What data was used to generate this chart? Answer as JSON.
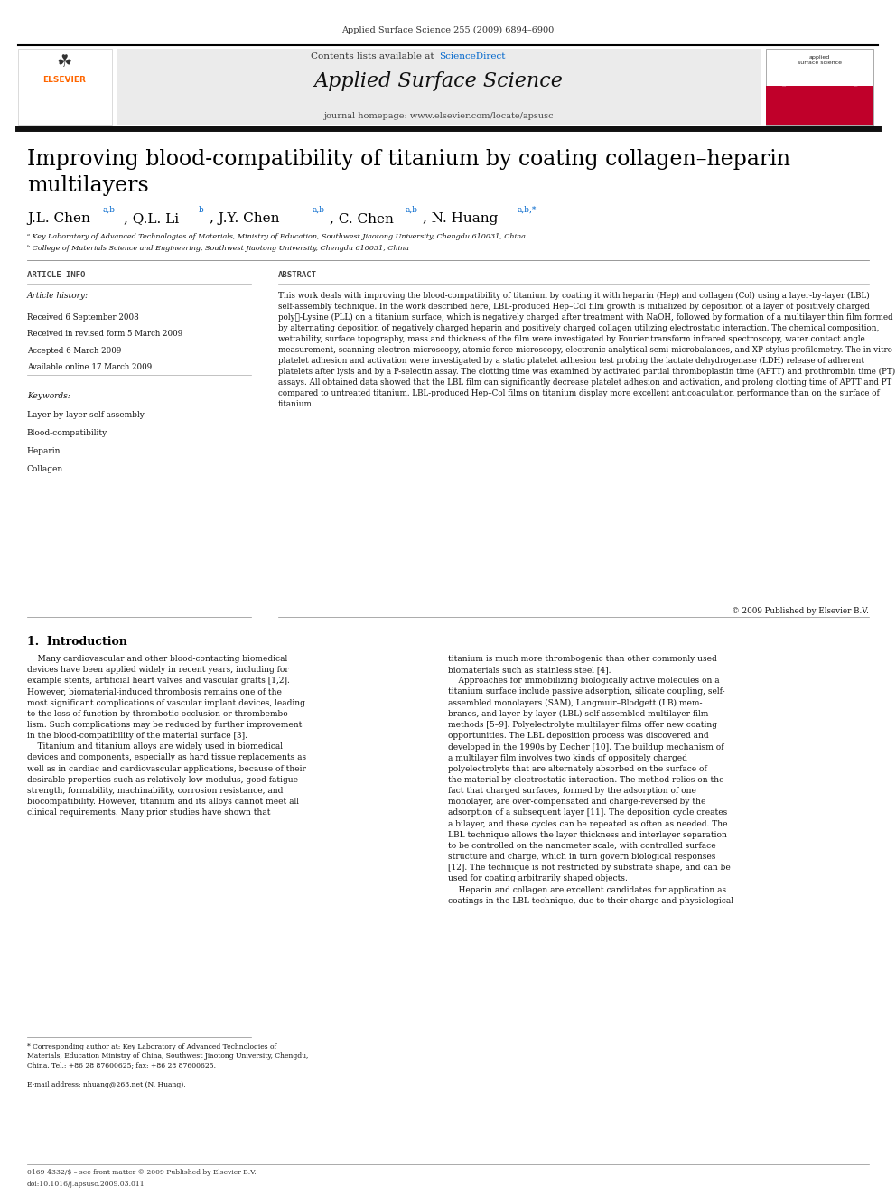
{
  "background_color": "#ffffff",
  "page_width": 9.92,
  "page_height": 13.23,
  "top_citation": "Applied Surface Science 255 (2009) 6894–6900",
  "color_gray_header": "#ebebeb",
  "color_blue": "#0066cc",
  "color_dark_bar": "#1a1a1a",
  "affil_a": "ᵃ Key Laboratory of Advanced Technologies of Materials, Ministry of Education, Southwest Jiaotong University, Chengdu 610031, China",
  "affil_b": "ᵇ College of Materials Science and Engineering, Southwest Jiaotong University, Chengdu 610031, China",
  "article_history_title": "Article history:",
  "received": "Received 6 September 2008",
  "revised": "Received in revised form 5 March 2009",
  "accepted": "Accepted 6 March 2009",
  "available": "Available online 17 March 2009",
  "keywords_title": "Keywords:",
  "keyword1": "Layer-by-layer self-assembly",
  "keyword2": "Blood-compatibility",
  "keyword3": "Heparin",
  "keyword4": "Collagen",
  "abstract_text": "This work deals with improving the blood-compatibility of titanium by coating it with heparin (Hep) and collagen (Col) using a layer-by-layer (LBL) self-assembly technique. In the work described here, LBL-produced Hep–Col film growth is initialized by deposition of a layer of positively charged polyℓ-Lysine (PLL) on a titanium surface, which is negatively charged after treatment with NaOH, followed by formation of a multilayer thin film formed by alternating deposition of negatively charged heparin and positively charged collagen utilizing electrostatic interaction. The chemical composition, wettability, surface topography, mass and thickness of the film were investigated by Fourier transform infrared spectroscopy, water contact angle measurement, scanning electron microscopy, atomic force microscopy, electronic analytical semi-microbalances, and XP stylus profilometry. The in vitro platelet adhesion and activation were investigated by a static platelet adhesion test probing the lactate dehydrogenase (LDH) release of adherent platelets after lysis and by a P-selectin assay. The clotting time was examined by activated partial thromboplastin time (APTT) and prothrombin time (PT) assays. All obtained data showed that the LBL film can significantly decrease platelet adhesion and activation, and prolong clotting time of APTT and PT compared to untreated titanium. LBL-produced Hep–Col films on titanium display more excellent anticoagulation performance than on the surface of titanium.",
  "copyright": "© 2009 Published by Elsevier B.V.",
  "footnote_email": "E-mail address: nhuang@263.net (N. Huang).",
  "bottom_issn": "0169-4332/$ – see front matter © 2009 Published by Elsevier B.V.",
  "bottom_doi": "doi:10.1016/j.apsusc.2009.03.011",
  "intro_text_left": "    Many cardiovascular and other blood-contacting biomedical\ndevices have been applied widely in recent years, including for\nexample stents, artificial heart valves and vascular grafts [1,2].\nHowever, biomaterial-induced thrombosis remains one of the\nmost significant complications of vascular implant devices, leading\nto the loss of function by thrombotic occlusion or thrombembo-\nlism. Such complications may be reduced by further improvement\nin the blood-compatibility of the material surface [3].\n    Titanium and titanium alloys are widely used in biomedical\ndevices and components, especially as hard tissue replacements as\nwell as in cardiac and cardiovascular applications, because of their\ndesirable properties such as relatively low modulus, good fatigue\nstrength, formability, machinability, corrosion resistance, and\nbiocompatibility. However, titanium and its alloys cannot meet all\nclinical requirements. Many prior studies have shown that",
  "intro_text_right": "titanium is much more thrombogenic than other commonly used\nbiomaterials such as stainless steel [4].\n    Approaches for immobilizing biologically active molecules on a\ntitanium surface include passive adsorption, silicate coupling, self-\nassembled monolayers (SAM), Langmuir–Blodgett (LB) mem-\nbranes, and layer-by-layer (LBL) self-assembled multilayer film\nmethods [5–9]. Polyelectrolyte multilayer films offer new coating\nopportunities. The LBL deposition process was discovered and\ndeveloped in the 1990s by Decher [10]. The buildup mechanism of\na multilayer film involves two kinds of oppositely charged\npolyelectrolyte that are alternately absorbed on the surface of\nthe material by electrostatic interaction. The method relies on the\nfact that charged surfaces, formed by the adsorption of one\nmonolayer, are over-compensated and charge-reversed by the\nadsorption of a subsequent layer [11]. The deposition cycle creates\na bilayer, and these cycles can be repeated as often as needed. The\nLBL technique allows the layer thickness and interlayer separation\nto be controlled on the nanometer scale, with controlled surface\nstructure and charge, which in turn govern biological responses\n[12]. The technique is not restricted by substrate shape, and can be\nused for coating arbitrarily shaped objects.\n    Heparin and collagen are excellent candidates for application as\ncoatings in the LBL technique, due to their charge and physiological"
}
